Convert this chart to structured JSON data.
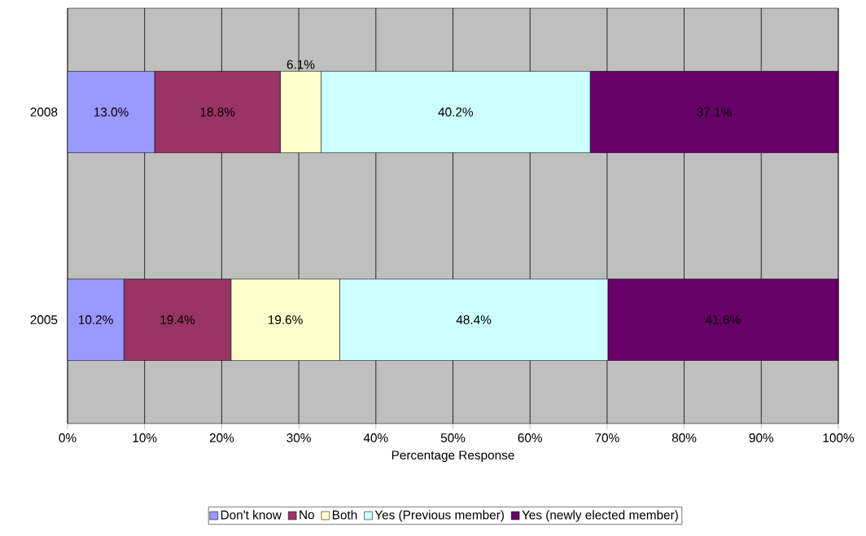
{
  "chart_data": {
    "type": "bar",
    "orientation": "horizontal",
    "stacked": true,
    "categories": [
      "2008",
      "2005"
    ],
    "series": [
      {
        "name": "Don't know",
        "color": "#9999ff",
        "values": [
          11.3,
          7.3
        ]
      },
      {
        "name": "No",
        "color": "#993366",
        "values": [
          16.3,
          13.9
        ]
      },
      {
        "name": "Both",
        "color": "#ffffcc",
        "values": [
          5.3,
          14.1
        ]
      },
      {
        "name": "Yes (Previous member)",
        "color": "#ccffff",
        "values": [
          34.9,
          34.8
        ]
      },
      {
        "name": "Yes (newly elected member)",
        "color": "#660066",
        "values": [
          32.2,
          29.9
        ]
      }
    ],
    "annotations": [
      "13.0%",
      "18.8%",
      "6.1%",
      "40.2%",
      "37.1%",
      "10.2%",
      "19.4%",
      "19.6%",
      "48.4%",
      "41.6%"
    ],
    "xlim": [
      0,
      100
    ],
    "xticks": [
      {
        "value": 0,
        "label": "0%"
      },
      {
        "value": 10,
        "label": "10%"
      },
      {
        "value": 20,
        "label": "20%"
      },
      {
        "value": 30,
        "label": "30%"
      },
      {
        "value": 40,
        "label": "40%"
      },
      {
        "value": 50,
        "label": "50%"
      },
      {
        "value": 60,
        "label": "60%"
      },
      {
        "value": 70,
        "label": "70%"
      },
      {
        "value": 80,
        "label": "80%"
      },
      {
        "value": 90,
        "label": "90%"
      },
      {
        "value": 100,
        "label": "100%"
      }
    ],
    "xlabel": "Percentage Response",
    "grid": "x",
    "legend": "bottom"
  }
}
